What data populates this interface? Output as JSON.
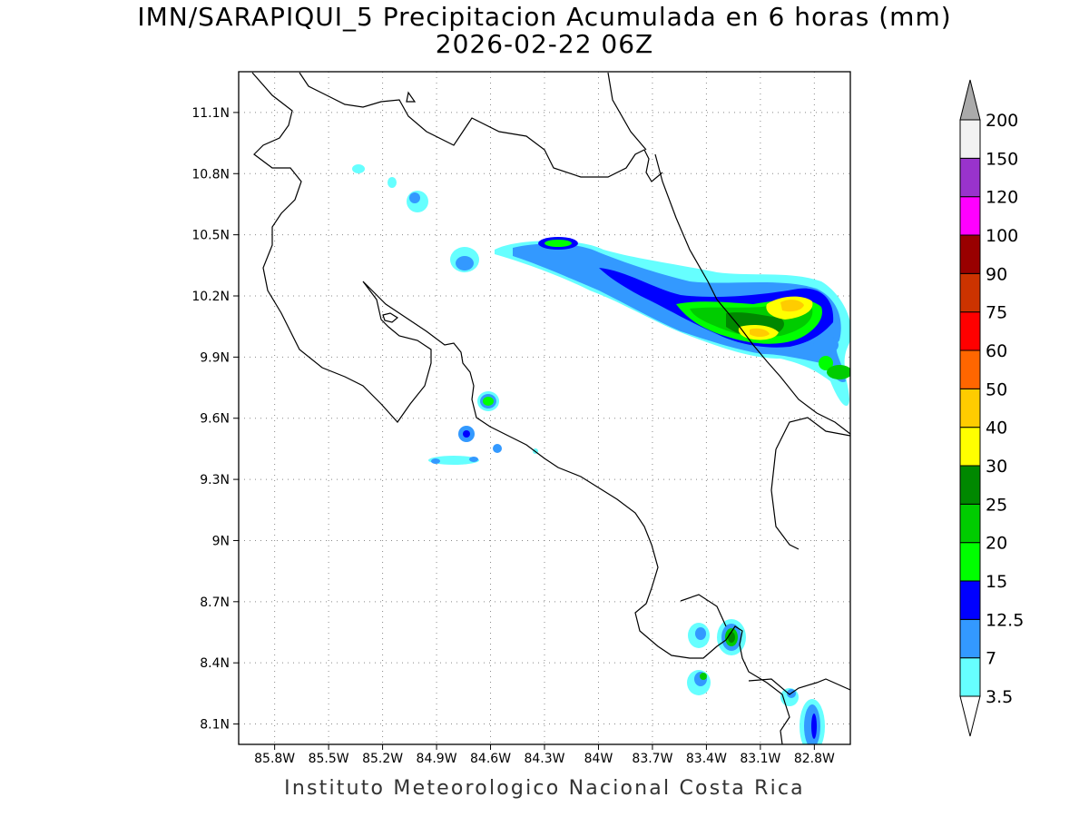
{
  "title": {
    "line1": "IMN/SARAPIQUI_5 Precipitacion Acumulada en 6 horas (mm)",
    "line2": "2026-02-22 06Z"
  },
  "footer": "Instituto Meteorologico Nacional Costa Rica",
  "map": {
    "lon_range": [
      -86.0,
      -82.6
    ],
    "lat_range": [
      8.0,
      11.3
    ],
    "x_ticks": [
      "85.8W",
      "85.5W",
      "85.2W",
      "84.9W",
      "84.6W",
      "84.3W",
      "84W",
      "83.7W",
      "83.4W",
      "83.1W",
      "82.8W"
    ],
    "y_ticks": [
      "11.1N",
      "10.8N",
      "10.5N",
      "10.2N",
      "9.9N",
      "9.6N",
      "9.3N",
      "9N",
      "8.7N",
      "8.4N",
      "8.1N"
    ],
    "gridlines": "dotted"
  },
  "colorbar": {
    "labels": [
      "3.5",
      "7",
      "12.5",
      "15",
      "20",
      "25",
      "30",
      "40",
      "50",
      "60",
      "75",
      "90",
      "100",
      "120",
      "150",
      "200"
    ],
    "colors": [
      "#66ffff",
      "#3399ff",
      "#0000ff",
      "#00ff00",
      "#00cc00",
      "#008800",
      "#ffff00",
      "#ffcc00",
      "#ff6600",
      "#ff0000",
      "#cc3300",
      "#990000",
      "#ff00ff",
      "#9933cc",
      "#f2f2f2"
    ],
    "top_arrow_color": "#aaaaaa",
    "bottom_arrow_color": "#ffffff"
  }
}
